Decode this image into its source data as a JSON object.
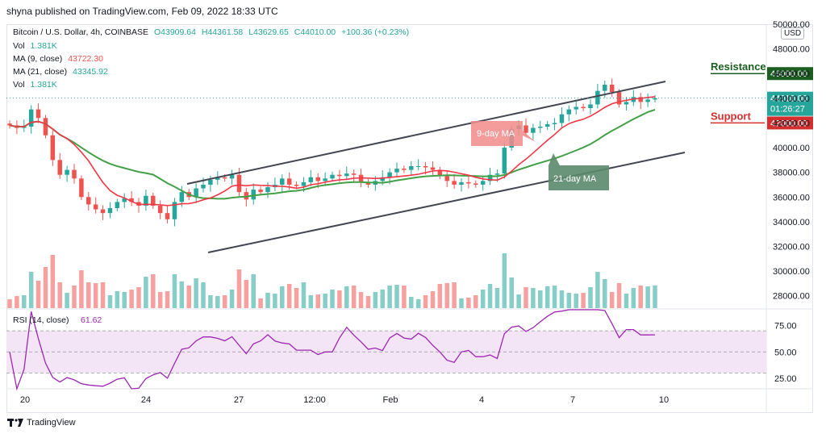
{
  "header": {
    "text": "shyna published on TradingView.com, Feb 09, 2022 18:33 UTC"
  },
  "legend": {
    "symbol": "Bitcoin / U.S. Dollar, 4h, COINBASE",
    "open": "O43909.64",
    "high": "H44361.58",
    "low": "L43629.65",
    "close": "C44010.00",
    "change": "+100.36 (+0.23%)",
    "vol_label": "Vol",
    "vol_value": "1.381K",
    "ma9_label": "MA (9, close)",
    "ma9_value": "43722.30",
    "ma21_label": "MA (21, close)",
    "ma21_value": "43345.92",
    "vol2_label": "Vol",
    "vol2_value": "1.381K"
  },
  "currency": "USD",
  "branding": "TradingView",
  "colors": {
    "up": "#26a69a",
    "down": "#ef5350",
    "ma9": "#f23645",
    "ma21": "#43a047",
    "rsi": "#9c27b0",
    "rsi_band": "#f3e5f5",
    "resistance": "#1b5e20",
    "support": "#d32f2f"
  },
  "chart_data": [
    {
      "type": "candlestick",
      "timeframe": "4h",
      "ylim": [
        27000,
        50000
      ],
      "y_ticks": [
        "50000.00",
        "48000.00",
        "46000.00",
        "44000.00",
        "42000.00",
        "40000.00",
        "38000.00",
        "36000.00",
        "34000.00",
        "32000.00",
        "30000.00",
        "28000.00"
      ],
      "x_ticks": [
        "20",
        "24",
        "27",
        "12:00",
        "Feb",
        "4",
        "7",
        "10"
      ],
      "price_tag": {
        "value": "44010.00",
        "countdown": "01:26:27"
      },
      "levels": [
        {
          "label": "Resistance",
          "value": 46000,
          "tag": "46000.00"
        },
        {
          "label": "Support",
          "value": 42000,
          "tag": "42000.00"
        }
      ],
      "annotations": [
        {
          "text": "9-day MA"
        },
        {
          "text": "21-day MA"
        }
      ],
      "closes": [
        41800,
        41600,
        41700,
        43100,
        42400,
        41000,
        39000,
        37800,
        38200,
        37500,
        36000,
        35400,
        35000,
        34700,
        35100,
        35600,
        35900,
        35600,
        35300,
        36100,
        35300,
        34700,
        34200,
        35600,
        36400,
        36000,
        36700,
        37000,
        37400,
        37600,
        37500,
        37800,
        36400,
        35800,
        36600,
        36400,
        36800,
        37000,
        37500,
        37000,
        36900,
        37200,
        37600,
        37300,
        37500,
        37800,
        37700,
        37900,
        37800,
        37200,
        37000,
        37300,
        37600,
        38000,
        38300,
        38200,
        38500,
        38500,
        38400,
        38200,
        37700,
        37300,
        37000,
        37200,
        37100,
        37000,
        37300,
        37800,
        37900,
        40000,
        41500,
        41800,
        41200,
        41600,
        41700,
        41900,
        42000,
        42700,
        43100,
        43300,
        43200,
        43500,
        44600,
        45100,
        44500,
        43500,
        43700,
        44100,
        43700,
        43900,
        44010
      ],
      "volume": {
        "ylim": [
          0,
          2000
        ]
      },
      "series": [
        {
          "name": "MA (9, close)"
        },
        {
          "name": "MA (21, close)"
        }
      ]
    },
    {
      "type": "line",
      "title": "RSI (14, close)",
      "value_label": "61.62",
      "ylim": [
        15,
        90
      ],
      "y_ticks": [
        "75.00",
        "50.00",
        "25.00"
      ],
      "band": [
        30,
        70
      ]
    }
  ]
}
